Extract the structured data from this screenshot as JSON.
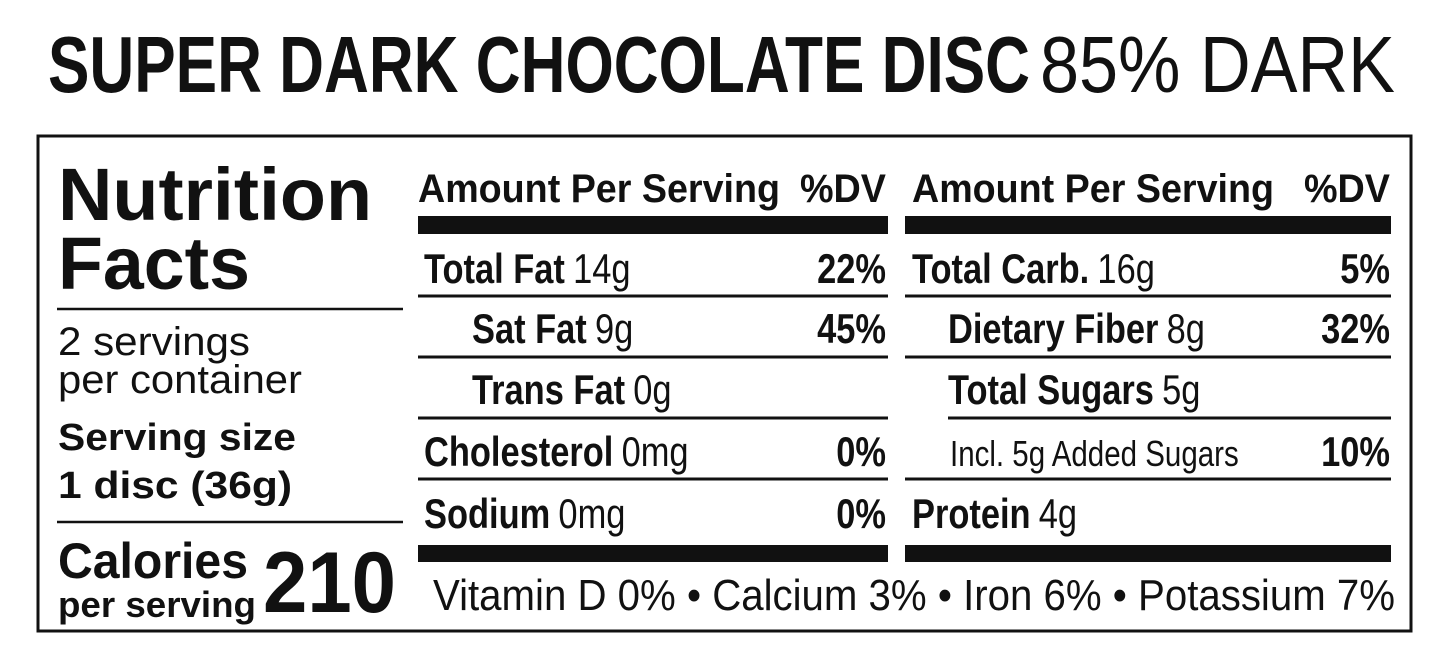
{
  "title": {
    "name": "SUPER DARK CHOCOLATE DISC",
    "variant": "85% DARK"
  },
  "facts": {
    "heading_lines": [
      "Nutrition",
      "Facts"
    ],
    "servings_lines": [
      "2 servings",
      "per container"
    ],
    "serving_size": {
      "label": "Serving size",
      "value": "1 disc (36g)"
    },
    "calories": {
      "label": "Calories",
      "sublabel": "per serving",
      "value": 210
    }
  },
  "columns": [
    {
      "header": {
        "amount": "Amount Per Serving",
        "dv": "%DV"
      },
      "rows": [
        {
          "name": "Total Fat",
          "amount": "14g",
          "dv": "22%"
        },
        {
          "name": "Sat Fat",
          "amount": "9g",
          "dv": "45%"
        },
        {
          "name": "Trans Fat",
          "amount": "0g"
        },
        {
          "name": "Cholesterol",
          "amount": "0mg",
          "dv": "0%"
        },
        {
          "name": "Sodium",
          "amount": "0mg",
          "dv": "0%"
        }
      ]
    },
    {
      "header": {
        "amount": "Amount Per Serving",
        "dv": "%DV"
      },
      "rows": [
        {
          "name": "Total Carb.",
          "amount": "16g",
          "dv": "5%"
        },
        {
          "name": "Dietary Fiber",
          "amount": "8g",
          "dv": "32%"
        },
        {
          "name": "Total Sugars",
          "amount": "5g"
        },
        {
          "name": "Incl. 5g Added Sugars",
          "dv": "10%"
        },
        {
          "name": "Protein",
          "amount": "4g"
        }
      ]
    }
  ],
  "footer": "Vitamin D 0% • Calcium 3% • Iron 6% • Potassium 7%"
}
